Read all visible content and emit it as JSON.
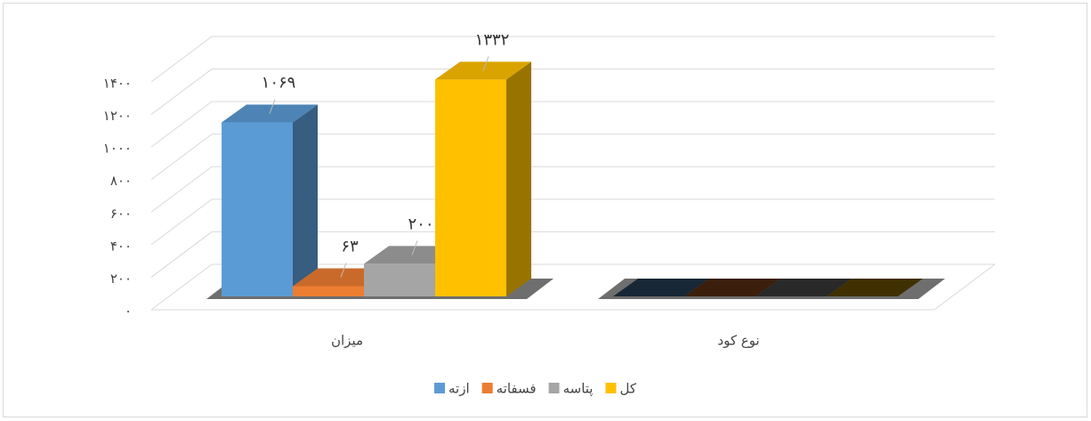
{
  "chart_data": {
    "type": "bar3d",
    "categories": [
      "میزان",
      "نوع کود"
    ],
    "series": [
      {
        "name": "ازته",
        "color": "#5b9bd5",
        "values": [
          1069,
          0
        ],
        "value_labels": [
          "۱۰۶۹",
          null
        ]
      },
      {
        "name": "فسفاته",
        "color": "#ed7d31",
        "values": [
          63,
          0
        ],
        "value_labels": [
          "۶۳",
          null
        ]
      },
      {
        "name": "پتاسه",
        "color": "#a5a5a5",
        "values": [
          200,
          0
        ],
        "value_labels": [
          "۲۰۰",
          null
        ]
      },
      {
        "name": "کل",
        "color": "#ffc000",
        "values": [
          1332,
          0
        ],
        "value_labels": [
          "۱۳۳۲",
          null
        ]
      }
    ],
    "ylim": [
      0,
      1400
    ],
    "yticks": [
      {
        "value": 0,
        "label": "۰"
      },
      {
        "value": 200,
        "label": "۲۰۰"
      },
      {
        "value": 400,
        "label": "۴۰۰"
      },
      {
        "value": 600,
        "label": "۶۰۰"
      },
      {
        "value": 800,
        "label": "۸۰۰"
      },
      {
        "value": 1000,
        "label": "۱۰۰۰"
      },
      {
        "value": 1200,
        "label": "۱۲۰۰"
      },
      {
        "value": 1400,
        "label": "۱۴۰۰"
      }
    ],
    "grid": true,
    "legend": "bottom"
  }
}
